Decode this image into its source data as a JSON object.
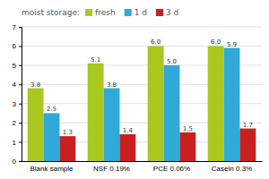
{
  "chart_data": {
    "type": "bar",
    "categories": [
      "Blank sample",
      "NSF 0.19%",
      "PCE 0.06%",
      "Casein 0.3%"
    ],
    "series": [
      {
        "name": "fresh",
        "color": "#aac820",
        "values": [
          3.8,
          5.1,
          6.0,
          6.0
        ],
        "value_labels": [
          "3.8",
          "5.1",
          "6.0",
          "6.0"
        ]
      },
      {
        "name": "1 d",
        "color": "#30a8d8",
        "values": [
          2.5,
          3.8,
          5.0,
          5.9
        ],
        "value_labels": [
          "2.5",
          "3.8",
          "5.0",
          "5.9"
        ]
      },
      {
        "name": "3 d",
        "color": "#c82020",
        "values": [
          1.3,
          1.4,
          1.5,
          1.7
        ],
        "value_labels": [
          "1.3",
          "1.4",
          "1.5",
          "1.7"
        ]
      }
    ],
    "ylim": [
      0,
      7
    ],
    "yticks": [
      0,
      1,
      2,
      3,
      4,
      5,
      6,
      7
    ],
    "grid": true,
    "data_labels": true,
    "legend": "top",
    "legend_title": "moist storage:"
  }
}
